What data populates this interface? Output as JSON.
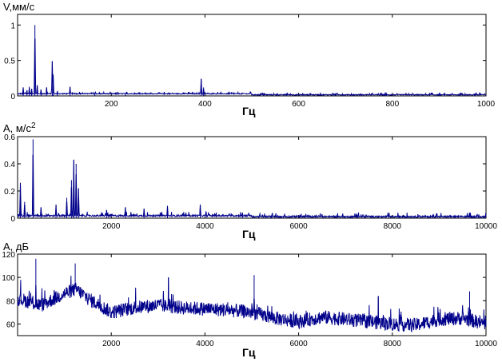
{
  "chart_data": [
    {
      "type": "line",
      "ylabel": "V,мм/с",
      "xlabel": "Гц",
      "xlim": [
        0,
        1000
      ],
      "ylim": [
        0,
        1.15
      ],
      "xticks": [
        200,
        400,
        600,
        800,
        1000
      ],
      "yticks": [
        0,
        0.5,
        1
      ],
      "xtick_labels": [
        "200",
        "400",
        "600",
        "800",
        "1000"
      ],
      "ytick_labels": [
        "0",
        "0.5",
        "1"
      ],
      "color": "#00008b",
      "baseline": 0.02,
      "noise": 0.012,
      "peaks": [
        {
          "x": 12,
          "y": 0.12
        },
        {
          "x": 20,
          "y": 0.08
        },
        {
          "x": 25,
          "y": 0.13
        },
        {
          "x": 30,
          "y": 0.1
        },
        {
          "x": 37,
          "y": 1.0
        },
        {
          "x": 42,
          "y": 0.15
        },
        {
          "x": 50,
          "y": 0.09
        },
        {
          "x": 62,
          "y": 0.12
        },
        {
          "x": 74,
          "y": 0.49
        },
        {
          "x": 76,
          "y": 0.3
        },
        {
          "x": 85,
          "y": 0.07
        },
        {
          "x": 112,
          "y": 0.13
        },
        {
          "x": 165,
          "y": 0.04
        },
        {
          "x": 230,
          "y": 0.03
        },
        {
          "x": 392,
          "y": 0.24
        },
        {
          "x": 397,
          "y": 0.12
        },
        {
          "x": 785,
          "y": 0.05
        }
      ]
    },
    {
      "type": "line",
      "ylabel": "А, м/с",
      "ylabel_sup": "2",
      "xlabel": "Гц",
      "xlim": [
        0,
        10000
      ],
      "ylim": [
        0,
        0.6
      ],
      "xticks": [
        2000,
        4000,
        6000,
        8000,
        10000
      ],
      "yticks": [
        0,
        0.2,
        0.4,
        0.6
      ],
      "xtick_labels": [
        "2000",
        "4000",
        "6000",
        "8000",
        "10000"
      ],
      "ytick_labels": [
        "0",
        "0.2",
        "0.4",
        "0.6"
      ],
      "color": "#00008b",
      "baseline": 0.01,
      "noise": 0.012,
      "peaks": [
        {
          "x": 60,
          "y": 0.26
        },
        {
          "x": 150,
          "y": 0.12
        },
        {
          "x": 330,
          "y": 0.58
        },
        {
          "x": 500,
          "y": 0.08
        },
        {
          "x": 820,
          "y": 0.1
        },
        {
          "x": 1050,
          "y": 0.15
        },
        {
          "x": 1150,
          "y": 0.28
        },
        {
          "x": 1200,
          "y": 0.43
        },
        {
          "x": 1250,
          "y": 0.4
        },
        {
          "x": 1300,
          "y": 0.22
        },
        {
          "x": 1900,
          "y": 0.06
        },
        {
          "x": 2300,
          "y": 0.08
        },
        {
          "x": 2700,
          "y": 0.07
        },
        {
          "x": 3200,
          "y": 0.09
        },
        {
          "x": 3900,
          "y": 0.1
        },
        {
          "x": 4800,
          "y": 0.04
        },
        {
          "x": 6200,
          "y": 0.025
        },
        {
          "x": 9800,
          "y": 0.025
        }
      ]
    },
    {
      "type": "line",
      "ylabel": "А, дБ",
      "xlabel": "Гц",
      "xlim": [
        0,
        10000
      ],
      "ylim": [
        50,
        120
      ],
      "xticks": [
        2000,
        4000,
        6000,
        8000,
        10000
      ],
      "yticks": [
        60,
        80,
        100,
        120
      ],
      "xtick_labels": [
        "2000",
        "4000",
        "6000",
        "8000",
        "10000"
      ],
      "ytick_labels": [
        "60",
        "80",
        "100",
        "120"
      ],
      "color": "#00008b",
      "envelope": {
        "x": [
          0,
          500,
          1000,
          1250,
          1500,
          2000,
          2500,
          3000,
          3500,
          4000,
          4500,
          5000,
          5500,
          6000,
          6500,
          7000,
          7500,
          8000,
          8500,
          9000,
          9500,
          10000
        ],
        "y": [
          82,
          76,
          86,
          90,
          82,
          70,
          74,
          76,
          74,
          73,
          72,
          70,
          65,
          62,
          66,
          64,
          62,
          60,
          59,
          64,
          65,
          60
        ]
      },
      "noise": 12,
      "peaks": [
        {
          "x": 390,
          "y": 116
        },
        {
          "x": 1230,
          "y": 112
        },
        {
          "x": 3220,
          "y": 100
        },
        {
          "x": 5050,
          "y": 102
        },
        {
          "x": 7700,
          "y": 84
        },
        {
          "x": 9650,
          "y": 88
        }
      ]
    }
  ]
}
